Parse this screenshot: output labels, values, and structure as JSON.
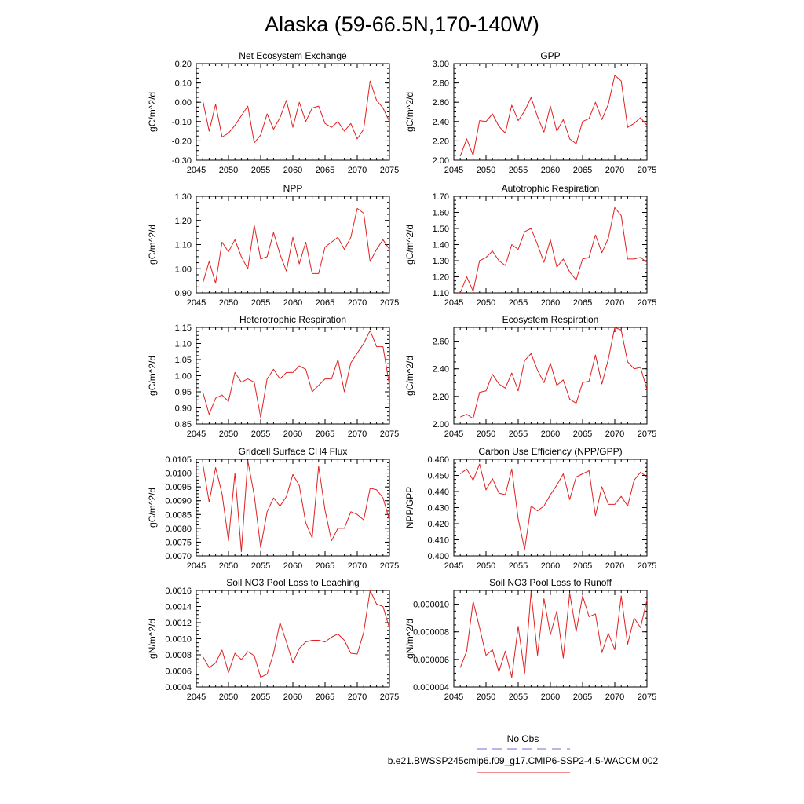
{
  "page": {
    "title": "Alaska (59-66.5N,170-140W)",
    "legend": {
      "entries": [
        {
          "label": "No Obs",
          "color": "#6f6fd0",
          "dash": true
        },
        {
          "label": "b.e21.BWSSP245cmip6.f09_g17.CMIP6-SSP2-4.5-WACCM.002",
          "color": "#e02020",
          "dash": false
        }
      ]
    }
  },
  "chart_data": [
    {
      "type": "line",
      "title": "Net Ecosystem Exchange",
      "ylabel": "gC/m^2/d",
      "xlim": [
        2045,
        2075
      ],
      "ylim": [
        -0.3,
        0.2
      ],
      "xticks": [
        2045,
        2050,
        2055,
        2060,
        2065,
        2070,
        2075
      ],
      "yticks": [
        "-0.30",
        "-0.20",
        "-0.10",
        "0.00",
        "0.10",
        "0.20"
      ],
      "series": [
        {
          "color": "#e02020",
          "x": [
            2046,
            2047,
            2048,
            2049,
            2050,
            2051,
            2052,
            2053,
            2054,
            2055,
            2056,
            2057,
            2058,
            2059,
            2060,
            2061,
            2062,
            2063,
            2064,
            2065,
            2066,
            2067,
            2068,
            2069,
            2070,
            2071,
            2072,
            2073,
            2074,
            2075
          ],
          "y": [
            0.01,
            -0.15,
            -0.01,
            -0.18,
            -0.16,
            -0.12,
            -0.07,
            -0.02,
            -0.21,
            -0.17,
            -0.06,
            -0.14,
            -0.08,
            0.01,
            -0.13,
            0.0,
            -0.1,
            -0.03,
            -0.02,
            -0.11,
            -0.13,
            -0.1,
            -0.15,
            -0.11,
            -0.19,
            -0.14,
            0.11,
            0.01,
            -0.03,
            -0.1
          ]
        }
      ]
    },
    {
      "type": "line",
      "title": "GPP",
      "ylabel": "gC/m^2/d",
      "xlim": [
        2045,
        2075
      ],
      "ylim": [
        2.0,
        3.0
      ],
      "xticks": [
        2045,
        2050,
        2055,
        2060,
        2065,
        2070,
        2075
      ],
      "yticks": [
        "2.00",
        "2.20",
        "2.40",
        "2.60",
        "2.80",
        "3.00"
      ],
      "series": [
        {
          "color": "#e02020",
          "x": [
            2046,
            2047,
            2048,
            2049,
            2050,
            2051,
            2052,
            2053,
            2054,
            2055,
            2056,
            2057,
            2058,
            2059,
            2060,
            2061,
            2062,
            2063,
            2064,
            2065,
            2066,
            2067,
            2068,
            2069,
            2070,
            2071,
            2072,
            2073,
            2074,
            2075
          ],
          "y": [
            2.04,
            2.22,
            2.05,
            2.41,
            2.4,
            2.48,
            2.35,
            2.28,
            2.57,
            2.41,
            2.51,
            2.65,
            2.45,
            2.29,
            2.56,
            2.3,
            2.42,
            2.22,
            2.17,
            2.4,
            2.43,
            2.6,
            2.42,
            2.58,
            2.88,
            2.82,
            2.34,
            2.38,
            2.44,
            2.36
          ]
        }
      ]
    },
    {
      "type": "line",
      "title": "NPP",
      "ylabel": "gC/m^2/d",
      "xlim": [
        2045,
        2075
      ],
      "ylim": [
        0.9,
        1.3
      ],
      "xticks": [
        2045,
        2050,
        2055,
        2060,
        2065,
        2070,
        2075
      ],
      "yticks": [
        "0.90",
        "1.00",
        "1.10",
        "1.20",
        "1.30"
      ],
      "series": [
        {
          "color": "#e02020",
          "x": [
            2046,
            2047,
            2048,
            2049,
            2050,
            2051,
            2052,
            2053,
            2054,
            2055,
            2056,
            2057,
            2058,
            2059,
            2060,
            2061,
            2062,
            2063,
            2064,
            2065,
            2066,
            2067,
            2068,
            2069,
            2070,
            2071,
            2072,
            2073,
            2074,
            2075
          ],
          "y": [
            0.94,
            1.03,
            0.94,
            1.11,
            1.07,
            1.12,
            1.05,
            1.0,
            1.18,
            1.04,
            1.05,
            1.15,
            1.06,
            0.99,
            1.13,
            1.02,
            1.11,
            0.98,
            0.98,
            1.09,
            1.11,
            1.13,
            1.08,
            1.13,
            1.25,
            1.23,
            1.03,
            1.08,
            1.12,
            1.08
          ]
        }
      ]
    },
    {
      "type": "line",
      "title": "Autotrophic Respiration",
      "ylabel": "gC/m^2/d",
      "xlim": [
        2045,
        2075
      ],
      "ylim": [
        1.1,
        1.7
      ],
      "xticks": [
        2045,
        2050,
        2055,
        2060,
        2065,
        2070,
        2075
      ],
      "yticks": [
        "1.10",
        "1.20",
        "1.30",
        "1.40",
        "1.50",
        "1.60",
        "1.70"
      ],
      "series": [
        {
          "color": "#e02020",
          "x": [
            2046,
            2047,
            2048,
            2049,
            2050,
            2051,
            2052,
            2053,
            2054,
            2055,
            2056,
            2057,
            2058,
            2059,
            2060,
            2061,
            2062,
            2063,
            2064,
            2065,
            2066,
            2067,
            2068,
            2069,
            2070,
            2071,
            2072,
            2073,
            2074,
            2075
          ],
          "y": [
            1.1,
            1.2,
            1.11,
            1.3,
            1.32,
            1.36,
            1.3,
            1.27,
            1.4,
            1.37,
            1.48,
            1.5,
            1.4,
            1.29,
            1.43,
            1.26,
            1.31,
            1.23,
            1.18,
            1.31,
            1.32,
            1.46,
            1.35,
            1.44,
            1.63,
            1.58,
            1.31,
            1.31,
            1.32,
            1.29
          ]
        }
      ]
    },
    {
      "type": "line",
      "title": "Heterotrophic Respiration",
      "ylabel": "gC/m^2/d",
      "xlim": [
        2045,
        2075
      ],
      "ylim": [
        0.85,
        1.15
      ],
      "xticks": [
        2045,
        2050,
        2055,
        2060,
        2065,
        2070,
        2075
      ],
      "yticks": [
        "0.85",
        "0.90",
        "0.95",
        "1.00",
        "1.05",
        "1.10",
        "1.15"
      ],
      "series": [
        {
          "color": "#e02020",
          "x": [
            2046,
            2047,
            2048,
            2049,
            2050,
            2051,
            2052,
            2053,
            2054,
            2055,
            2056,
            2057,
            2058,
            2059,
            2060,
            2061,
            2062,
            2063,
            2064,
            2065,
            2066,
            2067,
            2068,
            2069,
            2070,
            2071,
            2072,
            2073,
            2074,
            2075
          ],
          "y": [
            0.95,
            0.88,
            0.93,
            0.94,
            0.92,
            1.01,
            0.98,
            0.99,
            0.98,
            0.87,
            0.99,
            1.02,
            0.99,
            1.01,
            1.01,
            1.03,
            1.02,
            0.95,
            0.97,
            0.99,
            0.99,
            1.05,
            0.95,
            1.04,
            1.07,
            1.1,
            1.14,
            1.09,
            1.09,
            0.97
          ]
        }
      ]
    },
    {
      "type": "line",
      "title": "Ecosystem Respiration",
      "ylabel": "gC/m^2/d",
      "xlim": [
        2045,
        2075
      ],
      "ylim": [
        2.0,
        2.7
      ],
      "xticks": [
        2045,
        2050,
        2055,
        2060,
        2065,
        2070,
        2075
      ],
      "yticks": [
        "2.00",
        "2.20",
        "2.40",
        "2.60"
      ],
      "series": [
        {
          "color": "#e02020",
          "x": [
            2046,
            2047,
            2048,
            2049,
            2050,
            2051,
            2052,
            2053,
            2054,
            2055,
            2056,
            2057,
            2058,
            2059,
            2060,
            2061,
            2062,
            2063,
            2064,
            2065,
            2066,
            2067,
            2068,
            2069,
            2070,
            2071,
            2072,
            2073,
            2074,
            2075
          ],
          "y": [
            2.05,
            2.07,
            2.04,
            2.23,
            2.24,
            2.36,
            2.29,
            2.26,
            2.37,
            2.24,
            2.46,
            2.51,
            2.39,
            2.3,
            2.44,
            2.28,
            2.32,
            2.18,
            2.15,
            2.3,
            2.31,
            2.5,
            2.29,
            2.47,
            2.7,
            2.68,
            2.45,
            2.4,
            2.41,
            2.25
          ]
        }
      ]
    },
    {
      "type": "line",
      "title": "Gridcell Surface CH4 Flux",
      "ylabel": "gC/m^2/d",
      "xlim": [
        2045,
        2075
      ],
      "ylim": [
        0.007,
        0.0105
      ],
      "xticks": [
        2045,
        2050,
        2055,
        2060,
        2065,
        2070,
        2075
      ],
      "yticks": [
        "0.0070",
        "0.0075",
        "0.0080",
        "0.0085",
        "0.0090",
        "0.0095",
        "0.0100",
        "0.0105"
      ],
      "series": [
        {
          "color": "#e02020",
          "x": [
            2046,
            2047,
            2048,
            2049,
            2050,
            2051,
            2052,
            2053,
            2054,
            2055,
            2056,
            2057,
            2058,
            2059,
            2060,
            2061,
            2062,
            2063,
            2064,
            2065,
            2066,
            2067,
            2068,
            2069,
            2070,
            2071,
            2072,
            2073,
            2074,
            2075
          ],
          "y": [
            0.01035,
            0.00895,
            0.0102,
            0.00925,
            0.00755,
            0.01,
            0.00715,
            0.01045,
            0.0092,
            0.0073,
            0.0086,
            0.0091,
            0.0088,
            0.00915,
            0.00995,
            0.00955,
            0.0082,
            0.00765,
            0.01025,
            0.00865,
            0.00755,
            0.008,
            0.008,
            0.0086,
            0.0085,
            0.0083,
            0.00945,
            0.0094,
            0.0091,
            0.0083
          ]
        }
      ]
    },
    {
      "type": "line",
      "title": "Carbon Use Efficiency (NPP/GPP)",
      "ylabel": "NPP/GPP",
      "xlim": [
        2045,
        2075
      ],
      "ylim": [
        0.4,
        0.46
      ],
      "xticks": [
        2045,
        2050,
        2055,
        2060,
        2065,
        2070,
        2075
      ],
      "yticks": [
        "0.400",
        "0.410",
        "0.420",
        "0.430",
        "0.440",
        "0.450",
        "0.460"
      ],
      "series": [
        {
          "color": "#e02020",
          "x": [
            2046,
            2047,
            2048,
            2049,
            2050,
            2051,
            2052,
            2053,
            2054,
            2055,
            2056,
            2057,
            2058,
            2059,
            2060,
            2061,
            2062,
            2063,
            2064,
            2065,
            2066,
            2067,
            2068,
            2069,
            2070,
            2071,
            2072,
            2073,
            2074,
            2075
          ],
          "y": [
            0.451,
            0.454,
            0.447,
            0.457,
            0.441,
            0.448,
            0.439,
            0.438,
            0.454,
            0.423,
            0.404,
            0.431,
            0.428,
            0.431,
            0.438,
            0.444,
            0.451,
            0.435,
            0.449,
            0.451,
            0.453,
            0.425,
            0.443,
            0.432,
            0.432,
            0.437,
            0.431,
            0.447,
            0.452,
            0.449
          ]
        }
      ]
    },
    {
      "type": "line",
      "title": "Soil NO3 Pool Loss to Leaching",
      "ylabel": "gN/m^2/d",
      "xlim": [
        2045,
        2075
      ],
      "ylim": [
        0.0004,
        0.0016
      ],
      "xticks": [
        2045,
        2050,
        2055,
        2060,
        2065,
        2070,
        2075
      ],
      "yticks": [
        "0.0004",
        "0.0006",
        "0.0008",
        "0.0010",
        "0.0012",
        "0.0014",
        "0.0016"
      ],
      "series": [
        {
          "color": "#e02020",
          "x": [
            2046,
            2047,
            2048,
            2049,
            2050,
            2051,
            2052,
            2053,
            2054,
            2055,
            2056,
            2057,
            2058,
            2059,
            2060,
            2061,
            2062,
            2063,
            2064,
            2065,
            2066,
            2067,
            2068,
            2069,
            2070,
            2071,
            2072,
            2073,
            2074,
            2075
          ],
          "y": [
            0.00078,
            0.00064,
            0.0007,
            0.00086,
            0.00058,
            0.00082,
            0.00074,
            0.00084,
            0.00079,
            0.00052,
            0.00056,
            0.00082,
            0.0012,
            0.00096,
            0.0007,
            0.00088,
            0.00096,
            0.00098,
            0.00098,
            0.00096,
            0.00102,
            0.00106,
            0.00098,
            0.00082,
            0.00081,
            0.00108,
            0.0016,
            0.00143,
            0.0014,
            0.00113
          ]
        }
      ]
    },
    {
      "type": "line",
      "title": "Soil NO3 Pool Loss to Runoff",
      "ylabel": "gN/m^2/d",
      "xlim": [
        2045,
        2075
      ],
      "ylim": [
        4e-06,
        1.1e-05
      ],
      "xticks": [
        2045,
        2050,
        2055,
        2060,
        2065,
        2070,
        2075
      ],
      "yticks": [
        "0.000004",
        "0.000006",
        "0.000008",
        "0.000010"
      ],
      "series": [
        {
          "color": "#e02020",
          "x": [
            2046,
            2047,
            2048,
            2049,
            2050,
            2051,
            2052,
            2053,
            2054,
            2055,
            2056,
            2057,
            2058,
            2059,
            2060,
            2061,
            2062,
            2063,
            2064,
            2065,
            2066,
            2067,
            2068,
            2069,
            2070,
            2071,
            2072,
            2073,
            2074,
            2075
          ],
          "y": [
            5.4e-06,
            6.6e-06,
            1.02e-05,
            8.3e-06,
            6.3e-06,
            6.7e-06,
            5.1e-06,
            6.6e-06,
            4.7e-06,
            8.4e-06,
            5e-06,
            1.09e-05,
            6.3e-06,
            1.04e-05,
            7.8e-06,
            9.5e-06,
            6.1e-06,
            1.08e-05,
            8e-06,
            1.06e-05,
            9.1e-06,
            9.3e-06,
            6.5e-06,
            7.9e-06,
            6.7e-06,
            1.06e-05,
            7.1e-06,
            9e-06,
            8.3e-06,
            1.03e-05
          ]
        }
      ]
    }
  ]
}
